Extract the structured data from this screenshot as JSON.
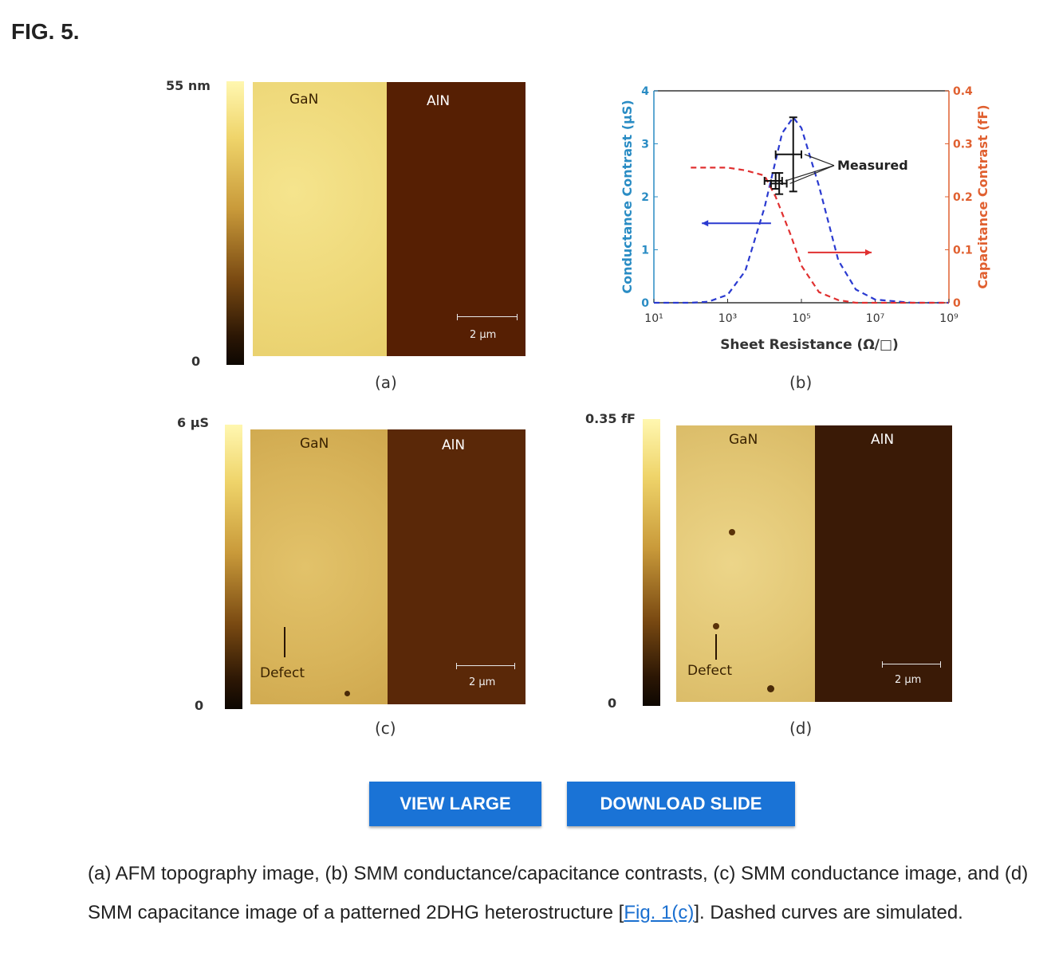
{
  "figure_title": "FIG. 5.",
  "panels": {
    "a": {
      "label": "(a)",
      "colorbar_max": "55 nm",
      "colorbar_min": "0",
      "left_material": "GaN",
      "right_material": "AlN",
      "scale_text": "2 µm"
    },
    "b": {
      "label": "(b)"
    },
    "c": {
      "label": "(c)",
      "colorbar_max": "6 µS",
      "colorbar_min": "0",
      "left_material": "GaN",
      "right_material": "AlN",
      "defect_label": "Defect",
      "scale_text": "2 µm"
    },
    "d": {
      "label": "(d)",
      "colorbar_max": "0.35 fF",
      "colorbar_min": "0",
      "left_material": "GaN",
      "right_material": "AlN",
      "defect_label": "Defect",
      "scale_text": "2 µm"
    }
  },
  "chart_data": {
    "type": "line",
    "xlabel": "Sheet Resistance (Ω/□)",
    "ylabel_left": "Conductance Contrast (µS)",
    "ylabel_right": "Capacitance Contrast (fF)",
    "x_scale": "log",
    "xlim": [
      10,
      1000000000
    ],
    "x_ticks": [
      "10¹",
      "10³",
      "10⁵",
      "10⁷",
      "10⁹"
    ],
    "ylim_left": [
      0,
      4
    ],
    "ylim_right": [
      0,
      0.4
    ],
    "y_ticks_left": [
      "0",
      "1",
      "2",
      "3",
      "4"
    ],
    "y_ticks_right": [
      "0",
      "0.1",
      "0.2",
      "0.3",
      "0.4"
    ],
    "left_axis_color": "#2a8cc4",
    "right_axis_color": "#e06030",
    "annotation": "Measured",
    "series": [
      {
        "axis": "left",
        "style": "dashed",
        "color": "#2a3ad0",
        "x": [
          10,
          100,
          300,
          1000,
          3000,
          10000,
          30000,
          60000,
          100000,
          300000,
          1000000,
          3000000,
          10000000,
          100000000,
          1000000000
        ],
        "y": [
          0,
          0,
          0.02,
          0.15,
          0.6,
          1.8,
          3.2,
          3.5,
          3.3,
          2.2,
          0.8,
          0.25,
          0.06,
          0,
          0
        ]
      },
      {
        "axis": "right",
        "style": "dashed",
        "color": "#e03030",
        "x": [
          100,
          1000,
          3000,
          10000,
          20000,
          50000,
          100000,
          300000,
          1000000,
          3000000,
          10000000,
          100000000,
          1000000000
        ],
        "y": [
          0.255,
          0.255,
          0.25,
          0.24,
          0.2,
          0.13,
          0.07,
          0.02,
          0.005,
          0,
          0,
          0,
          0
        ]
      }
    ],
    "measured_points": [
      {
        "x": 20000,
        "y": 2.3,
        "xerr_low": 10000,
        "xerr_high": 30000,
        "yerr": 0.15
      },
      {
        "x": 25000,
        "y": 2.25,
        "xerr_low": 15000,
        "xerr_high": 40000,
        "yerr": 0.2
      },
      {
        "x": 60000,
        "y": 2.8,
        "xerr_low": 20000,
        "xerr_high": 100000,
        "yerr": 0.7
      }
    ],
    "arrows": [
      {
        "color": "#2a3ad0",
        "direction": "left",
        "y": 1.5,
        "x_from": 15000,
        "x_to": 200
      },
      {
        "color": "#e03030",
        "direction": "right",
        "y": 0.95,
        "x_from": 150000,
        "x_to": 8000000
      }
    ],
    "grid": false
  },
  "buttons": {
    "view_large": "VIEW LARGE",
    "download_slide": "DOWNLOAD SLIDE"
  },
  "caption": {
    "text_before_link": "(a) AFM topography image, (b) SMM conductance/capacitance contrasts, (c) SMM conductance image, and (d) SMM capacitance image of a patterned 2DHG heterostructure [",
    "link_text": "Fig. 1(c)",
    "text_after_link": "]. Dashed curves are simulated."
  }
}
